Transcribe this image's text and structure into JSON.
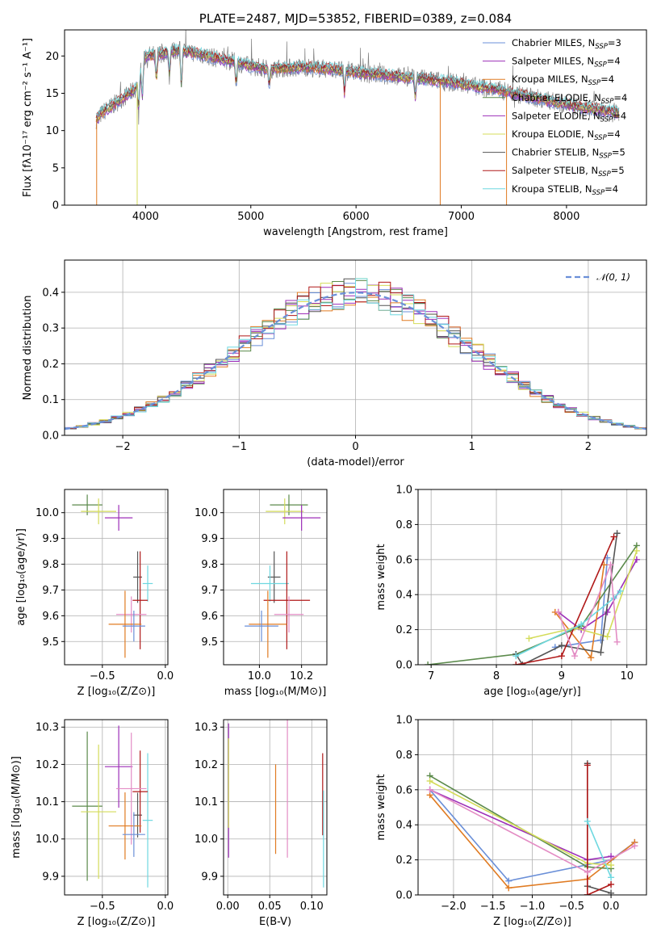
{
  "chart_data": [
    {
      "id": "spectrum",
      "type": "line",
      "title": "PLATE=2487, MJD=53852, FIBERID=0389, z=0.084",
      "xlabel": "wavelength [Angstrom, rest frame]",
      "ylabel": "Flux [fλ10⁻¹⁷ erg cm⁻² s⁻¹ A⁻¹]",
      "xlim": [
        3230,
        8760
      ],
      "ylim": [
        0,
        23.5
      ],
      "xticks": [
        4000,
        5000,
        6000,
        7000,
        8000
      ],
      "yticks": [
        0,
        5,
        10,
        15,
        20
      ],
      "grid": false,
      "legend_position": "top-right",
      "legend": [
        {
          "name": "Chabrier MILES, N",
          "sub": "SSP",
          "tail": "=3",
          "color": "#6a8fd8"
        },
        {
          "name": "Salpeter MILES, N",
          "sub": "SSP",
          "tail": "=4",
          "color": "#9d2fb8"
        },
        {
          "name": "Kroupa MILES, N",
          "sub": "SSP",
          "tail": "=4",
          "color": "#e07b22"
        },
        {
          "name": "Chabrier ELODIE, N",
          "sub": "SSP",
          "tail": "=4",
          "color": "#5b8a4b"
        },
        {
          "name": "Salpeter ELODIE, N",
          "sub": "SSP",
          "tail": "=4",
          "color": "#9d2fb8"
        },
        {
          "name": "Kroupa ELODIE, N",
          "sub": "SSP",
          "tail": "=4",
          "color": "#d4dc5a"
        },
        {
          "name": "Chabrier STELIB, N",
          "sub": "SSP",
          "tail": "=5",
          "color": "#555555"
        },
        {
          "name": "Salpeter STELIB, N",
          "sub": "SSP",
          "tail": "=5",
          "color": "#b01818"
        },
        {
          "name": "Kroupa STELIB, N",
          "sub": "SSP",
          "tail": "=4",
          "color": "#6ed8e0"
        }
      ],
      "continuum": {
        "x": [
          3530,
          3600,
          3700,
          3800,
          3900,
          4000,
          4100,
          4300,
          4500,
          4700,
          4850,
          5000,
          5200,
          5500,
          5800,
          6000,
          6300,
          6600,
          6900,
          7100,
          7300,
          7500,
          7700,
          7900,
          8100,
          8300,
          8500
        ],
        "y": [
          11.5,
          12.5,
          13.5,
          14.5,
          15.5,
          20.0,
          20.2,
          20.8,
          20.3,
          19.6,
          19.2,
          18.6,
          18.3,
          18.5,
          18.2,
          17.8,
          17.4,
          17.0,
          16.5,
          16.0,
          15.6,
          15.0,
          14.4,
          13.8,
          13.2,
          12.8,
          12.4
        ]
      },
      "absorption_lines": [
        {
          "x": 3934,
          "depth": 5.0
        },
        {
          "x": 3969,
          "depth": 4.5
        },
        {
          "x": 4102,
          "depth": 4.0
        },
        {
          "x": 4227,
          "depth": 3.5
        },
        {
          "x": 4340,
          "depth": 5.5
        },
        {
          "x": 4861,
          "depth": 3.5
        },
        {
          "x": 5175,
          "depth": 3.0
        },
        {
          "x": 5890,
          "depth": 3.2
        },
        {
          "x": 6563,
          "depth": 3.0
        }
      ],
      "drop_lines": [
        {
          "x": 3535,
          "color": "#e07b22"
        },
        {
          "x": 3920,
          "color": "#d4dc5a"
        },
        {
          "x": 6800,
          "color": "#e07b22"
        },
        {
          "x": 7430,
          "color": "#e07b22"
        }
      ]
    },
    {
      "id": "residuals",
      "type": "histogram",
      "xlabel": "(data-model)/error",
      "ylabel": "Normed distribution",
      "xlim": [
        -2.5,
        2.5
      ],
      "ylim": [
        0,
        0.49
      ],
      "xticks": [
        -2,
        -1,
        0,
        1,
        2
      ],
      "yticks": [
        0.0,
        0.1,
        0.2,
        0.3,
        0.4
      ],
      "grid": true,
      "legend_position": "top-right",
      "legend": [
        {
          "name": "𝒩(0, 1)",
          "color": "#6a8fd8",
          "style": "dashed"
        }
      ],
      "bin_width": 0.1,
      "gaussian": {
        "mean": 0,
        "sigma": 1
      }
    },
    {
      "id": "age-vs-Z",
      "type": "errorbar",
      "xlabel": "Z [log₁₀(Z/Z⊙)]",
      "ylabel": "age  [log₁₀(age/yr)]",
      "xlim": [
        -0.8,
        0.02
      ],
      "ylim": [
        9.41,
        10.09
      ],
      "xticks": [
        -0.5,
        0.0
      ],
      "yticks": [
        9.5,
        9.6,
        9.7,
        9.8,
        9.9,
        10.0
      ],
      "grid": true,
      "points": [
        {
          "x": -0.62,
          "xerr": 0.12,
          "y": 10.03,
          "yerr": 0.04,
          "color": "#5b8a4b"
        },
        {
          "x": -0.53,
          "xerr": 0.14,
          "y": 10.005,
          "yerr": 0.05,
          "color": "#d4dc5a"
        },
        {
          "x": -0.37,
          "xerr": 0.11,
          "y": 9.98,
          "yerr": 0.05,
          "color": "#9d2fb8"
        },
        {
          "x": -0.22,
          "xerr": 0.035,
          "y": 9.75,
          "yerr": 0.1,
          "color": "#555555"
        },
        {
          "x": -0.14,
          "xerr": 0.04,
          "y": 9.725,
          "yerr": 0.07,
          "color": "#6ed8e0"
        },
        {
          "x": -0.2,
          "xerr": 0.06,
          "y": 9.66,
          "yerr": 0.19,
          "color": "#b01818"
        },
        {
          "x": -0.27,
          "xerr": 0.12,
          "y": 9.605,
          "yerr": 0.07,
          "color": "#e38cc4"
        },
        {
          "x": -0.32,
          "xerr": 0.13,
          "y": 9.567,
          "yerr": 0.13,
          "color": "#e07b22"
        },
        {
          "x": -0.25,
          "xerr": 0.09,
          "y": 9.56,
          "yerr": 0.06,
          "color": "#6a8fd8"
        }
      ]
    },
    {
      "id": "age-vs-mass",
      "type": "errorbar",
      "xlabel": "mass [log₁₀(M/M⊙)]",
      "ylabel": "",
      "xlim": [
        9.83,
        10.32
      ],
      "ylim": [
        9.41,
        10.09
      ],
      "xticks": [
        10.0,
        10.2
      ],
      "yticks": [
        9.5,
        9.6,
        9.7,
        9.8,
        9.9,
        10.0
      ],
      "grid": true,
      "points": [
        {
          "x": 10.14,
          "xerr": 0.09,
          "y": 10.03,
          "yerr": 0.04,
          "color": "#5b8a4b"
        },
        {
          "x": 10.12,
          "xerr": 0.09,
          "y": 10.005,
          "yerr": 0.05,
          "color": "#d4dc5a"
        },
        {
          "x": 10.2,
          "xerr": 0.09,
          "y": 9.98,
          "yerr": 0.05,
          "color": "#9d2fb8"
        },
        {
          "x": 10.07,
          "xerr": 0.03,
          "y": 9.75,
          "yerr": 0.1,
          "color": "#555555"
        },
        {
          "x": 10.05,
          "xerr": 0.09,
          "y": 9.725,
          "yerr": 0.07,
          "color": "#6ed8e0"
        },
        {
          "x": 10.13,
          "xerr": 0.11,
          "y": 9.66,
          "yerr": 0.19,
          "color": "#b01818"
        },
        {
          "x": 10.14,
          "xerr": 0.07,
          "y": 9.605,
          "yerr": 0.07,
          "color": "#e38cc4"
        },
        {
          "x": 10.04,
          "xerr": 0.09,
          "y": 9.567,
          "yerr": 0.13,
          "color": "#e07b22"
        },
        {
          "x": 10.01,
          "xerr": 0.08,
          "y": 9.56,
          "yerr": 0.06,
          "color": "#6a8fd8"
        }
      ]
    },
    {
      "id": "weight-vs-age",
      "type": "line",
      "xlabel": "age  [log₁₀(age/yr)]",
      "ylabel": "mass weight",
      "xlim": [
        6.8,
        10.3
      ],
      "ylim": [
        0.0,
        1.0
      ],
      "xticks": [
        7,
        8,
        9,
        10
      ],
      "yticks": [
        0.0,
        0.2,
        0.4,
        0.6,
        0.8,
        1.0
      ],
      "grid": true,
      "series": [
        {
          "color": "#6a8fd8",
          "x": [
            8.9,
            9.6,
            9.7
          ],
          "y": [
            0.1,
            0.14,
            0.61
          ]
        },
        {
          "color": "#9d2fb8",
          "x": [
            8.95,
            9.3,
            9.7,
            10.15
          ],
          "y": [
            0.3,
            0.2,
            0.3,
            0.6
          ]
        },
        {
          "color": "#e07b22",
          "x": [
            8.9,
            9.45,
            9.65
          ],
          "y": [
            0.3,
            0.04,
            0.57
          ]
        },
        {
          "color": "#5b8a4b",
          "x": [
            6.95,
            8.3,
            9.3,
            10.15
          ],
          "y": [
            0.0,
            0.06,
            0.22,
            0.68
          ]
        },
        {
          "color": "#d4dc5a",
          "x": [
            8.5,
            9.2,
            9.7,
            10.15
          ],
          "y": [
            0.15,
            0.21,
            0.16,
            0.65
          ]
        },
        {
          "color": "#555555",
          "x": [
            8.3,
            8.4,
            9.0,
            9.6,
            9.85
          ],
          "y": [
            0.06,
            0.0,
            0.11,
            0.07,
            0.75
          ]
        },
        {
          "color": "#b01818",
          "x": [
            8.3,
            9.0,
            9.8
          ],
          "y": [
            0.0,
            0.05,
            0.73
          ]
        },
        {
          "color": "#6ed8e0",
          "x": [
            8.3,
            9.3,
            9.8,
            9.9
          ],
          "y": [
            0.05,
            0.23,
            0.38,
            0.42
          ]
        },
        {
          "color": "#e38cc4",
          "x": [
            8.95,
            9.2,
            9.75,
            9.85
          ],
          "y": [
            0.3,
            0.05,
            0.57,
            0.13
          ]
        }
      ]
    },
    {
      "id": "mass-vs-Z",
      "type": "errorbar",
      "xlabel": "Z [log₁₀(Z/Z⊙)]",
      "ylabel": "mass [log₁₀(M/M⊙)]",
      "xlim": [
        -0.8,
        0.02
      ],
      "ylim": [
        9.85,
        10.32
      ],
      "xticks": [
        -0.5,
        0.0
      ],
      "yticks": [
        9.9,
        10.0,
        10.1,
        10.2,
        10.3
      ],
      "grid": true,
      "points": [
        {
          "x": -0.62,
          "xerr": 0.12,
          "y": 10.088,
          "yerr": 0.2,
          "color": "#5b8a4b"
        },
        {
          "x": -0.53,
          "xerr": 0.14,
          "y": 10.073,
          "yerr": 0.18,
          "color": "#d4dc5a"
        },
        {
          "x": -0.37,
          "xerr": 0.11,
          "y": 10.194,
          "yerr": 0.11,
          "color": "#9d2fb8"
        },
        {
          "x": -0.22,
          "xerr": 0.035,
          "y": 10.064,
          "yerr": 0.06,
          "color": "#555555"
        },
        {
          "x": -0.14,
          "xerr": 0.04,
          "y": 10.05,
          "yerr": 0.18,
          "color": "#6ed8e0"
        },
        {
          "x": -0.2,
          "xerr": 0.06,
          "y": 10.127,
          "yerr": 0.11,
          "color": "#b01818"
        },
        {
          "x": -0.27,
          "xerr": 0.12,
          "y": 10.135,
          "yerr": 0.15,
          "color": "#e38cc4"
        },
        {
          "x": -0.32,
          "xerr": 0.13,
          "y": 10.035,
          "yerr": 0.09,
          "color": "#e07b22"
        },
        {
          "x": -0.25,
          "xerr": 0.09,
          "y": 10.012,
          "yerr": 0.06,
          "color": "#6a8fd8"
        }
      ]
    },
    {
      "id": "mass-vs-ebv",
      "type": "errorbar",
      "xlabel": "E(B-V)",
      "ylabel": "",
      "xlim": [
        -0.005,
        0.118
      ],
      "ylim": [
        9.85,
        10.32
      ],
      "xticks": [
        0.0,
        0.05,
        0.1
      ],
      "yticks": [
        9.9,
        10.0,
        10.1,
        10.2,
        10.3
      ],
      "grid": true,
      "points": [
        {
          "x": 0.001,
          "y": 10.13,
          "yerr": 0.18,
          "color": "#9d2fb8"
        },
        {
          "x": 0.001,
          "y": 10.15,
          "yerr": 0.12,
          "color": "#d4dc5a"
        },
        {
          "x": 0.057,
          "y": 10.08,
          "yerr": 0.12,
          "color": "#e07b22"
        },
        {
          "x": 0.071,
          "y": 10.15,
          "yerr": 0.2,
          "color": "#e38cc4"
        },
        {
          "x": 0.113,
          "y": 10.12,
          "yerr": 0.11,
          "color": "#b01818"
        },
        {
          "x": 0.114,
          "y": 10.0,
          "yerr": 0.13,
          "color": "#6ed8e0"
        }
      ]
    },
    {
      "id": "weight-vs-Z",
      "type": "line",
      "xlabel": "Z [log₁₀(Z/Z⊙)]",
      "ylabel": "mass weight",
      "xlim": [
        -2.45,
        0.45
      ],
      "ylim": [
        0.0,
        1.0
      ],
      "xticks": [
        -2.0,
        -1.5,
        -1.0,
        -0.5,
        0.0
      ],
      "yticks": [
        0.0,
        0.2,
        0.4,
        0.6,
        0.8,
        1.0
      ],
      "grid": true,
      "series": [
        {
          "color": "#6a8fd8",
          "x": [
            -2.3,
            -1.3,
            0.0,
            0.3
          ],
          "y": [
            0.6,
            0.08,
            0.2,
            0.3
          ]
        },
        {
          "color": "#9d2fb8",
          "x": [
            -2.3,
            -0.3,
            0.0
          ],
          "y": [
            0.6,
            0.2,
            0.22
          ]
        },
        {
          "color": "#e07b22",
          "x": [
            -2.3,
            -1.3,
            -0.3,
            0.3
          ],
          "y": [
            0.57,
            0.04,
            0.09,
            0.3
          ]
        },
        {
          "color": "#5b8a4b",
          "x": [
            -2.3,
            -0.3,
            0.0
          ],
          "y": [
            0.68,
            0.16,
            0.15
          ]
        },
        {
          "color": "#d4dc5a",
          "x": [
            -2.3,
            -0.3,
            0.0
          ],
          "y": [
            0.65,
            0.18,
            0.17
          ]
        },
        {
          "color": "#555555",
          "x": [
            -0.3,
            -0.3,
            0.0
          ],
          "y": [
            0.75,
            0.05,
            0.01
          ]
        },
        {
          "color": "#b01818",
          "x": [
            -0.3,
            -0.3,
            0.0,
            -0.3
          ],
          "y": [
            0.74,
            0.0,
            0.06,
            0.0
          ]
        },
        {
          "color": "#6ed8e0",
          "x": [
            -0.3,
            0.0
          ],
          "y": [
            0.42,
            0.1
          ]
        },
        {
          "color": "#e38cc4",
          "x": [
            -2.3,
            -0.3,
            0.3
          ],
          "y": [
            0.6,
            0.13,
            0.28
          ]
        }
      ]
    }
  ]
}
